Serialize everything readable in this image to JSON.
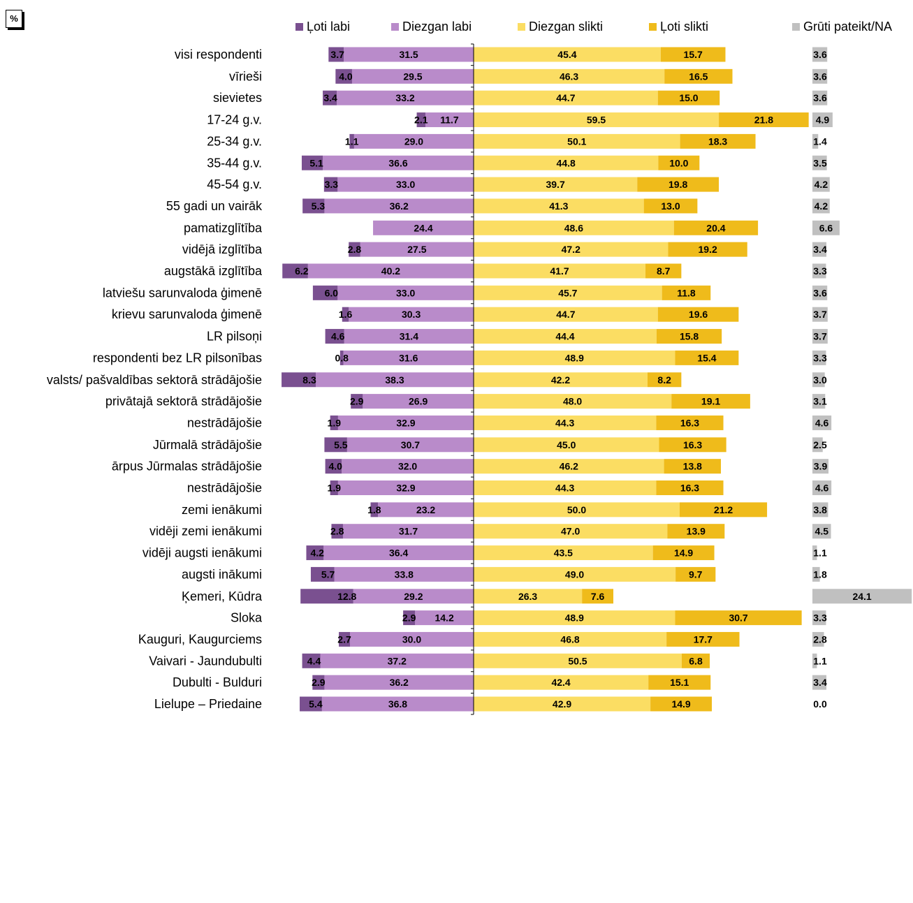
{
  "unit_label": "%",
  "colors": {
    "loti_labi": "#7a5090",
    "diezgan_labi": "#b98bca",
    "diezgan_slikti": "#fbdd63",
    "loti_slikti": "#efbb1b",
    "gruti": "#c0c0c0"
  },
  "legend": [
    {
      "name": "Ļoti labi",
      "color": "#7a5090"
    },
    {
      "name": "Diezgan labi",
      "color": "#b98bca"
    },
    {
      "name": "Diezgan slikti",
      "color": "#fbdd63"
    },
    {
      "name": "Ļoti slikti",
      "color": "#efbb1b"
    },
    {
      "name": "Grūti pateikt/NA",
      "color": "#c0c0c0"
    }
  ],
  "chart_data": {
    "type": "bar",
    "orientation": "horizontal-diverging",
    "legend_position": "top",
    "grid": false,
    "series_names": [
      "Ļoti labi",
      "Diezgan labi",
      "Diezgan slikti",
      "Ļoti slikti",
      "Grūti pateikt/NA"
    ],
    "groups": [
      [
        {
          "label": "visi respondenti",
          "values": [
            "3.7",
            "31.5",
            "45.4",
            "15.7",
            "3.6"
          ]
        }
      ],
      [
        {
          "label": "vīrieši",
          "values": [
            "4.0",
            "29.5",
            "46.3",
            "16.5",
            "3.6"
          ]
        },
        {
          "label": "sievietes",
          "values": [
            "3.4",
            "33.2",
            "44.7",
            "15.0",
            "3.6"
          ]
        }
      ],
      [
        {
          "label": "17-24 g.v.",
          "values": [
            "2.1",
            "11.7",
            "59.5",
            "21.8",
            "4.9"
          ]
        },
        {
          "label": "25-34 g.v.",
          "values": [
            "1.1",
            "29.0",
            "50.1",
            "18.3",
            "1.4"
          ]
        },
        {
          "label": "35-44 g.v.",
          "values": [
            "5.1",
            "36.6",
            "44.8",
            "10.0",
            "3.5"
          ]
        },
        {
          "label": "45-54 g.v.",
          "values": [
            "3.3",
            "33.0",
            "39.7",
            "19.8",
            "4.2"
          ]
        },
        {
          "label": "55 gadi un vairāk",
          "values": [
            "5.3",
            "36.2",
            "41.3",
            "13.0",
            "4.2"
          ]
        }
      ],
      [
        {
          "label": "pamatizglītība",
          "values": [
            null,
            "24.4",
            "48.6",
            "20.4",
            "6.6"
          ]
        },
        {
          "label": "vidējā izglītība",
          "values": [
            "2.8",
            "27.5",
            "47.2",
            "19.2",
            "3.4"
          ]
        },
        {
          "label": "augstākā izglītība",
          "values": [
            "6.2",
            "40.2",
            "41.7",
            "8.7",
            "3.3"
          ]
        }
      ],
      [
        {
          "label": "latviešu sarunvaloda ģimenē",
          "values": [
            "6.0",
            "33.0",
            "45.7",
            "11.8",
            "3.6"
          ]
        },
        {
          "label": "krievu sarunvaloda ģimenē",
          "values": [
            "1.6",
            "30.3",
            "44.7",
            "19.6",
            "3.7"
          ]
        }
      ],
      [
        {
          "label": "LR pilsoņi",
          "values": [
            "4.6",
            "31.4",
            "44.4",
            "15.8",
            "3.7"
          ]
        },
        {
          "label": "respondenti bez LR pilsonības",
          "values": [
            "0.8",
            "31.6",
            "48.9",
            "15.4",
            "3.3"
          ]
        }
      ],
      [
        {
          "label": "valsts/ pašvaldības sektorā strādājošie",
          "values": [
            "8.3",
            "38.3",
            "42.2",
            "8.2",
            "3.0"
          ]
        },
        {
          "label": "privātajā sektorā strādājošie",
          "values": [
            "2.9",
            "26.9",
            "48.0",
            "19.1",
            "3.1"
          ]
        },
        {
          "label": "nestrādājošie",
          "values": [
            "1.9",
            "32.9",
            "44.3",
            "16.3",
            "4.6"
          ]
        }
      ],
      [
        {
          "label": "Jūrmalā strādājošie",
          "values": [
            "5.5",
            "30.7",
            "45.0",
            "16.3",
            "2.5"
          ]
        },
        {
          "label": "ārpus Jūrmalas strādājošie",
          "values": [
            "4.0",
            "32.0",
            "46.2",
            "13.8",
            "3.9"
          ]
        },
        {
          "label": "nestrādājošie",
          "values": [
            "1.9",
            "32.9",
            "44.3",
            "16.3",
            "4.6"
          ]
        }
      ],
      [
        {
          "label": "zemi ienākumi",
          "values": [
            "1.8",
            "23.2",
            "50.0",
            "21.2",
            "3.8"
          ]
        },
        {
          "label": "vidēji zemi ienākumi",
          "values": [
            "2.8",
            "31.7",
            "47.0",
            "13.9",
            "4.5"
          ]
        },
        {
          "label": "vidēji augsti ienākumi",
          "values": [
            "4.2",
            "36.4",
            "43.5",
            "14.9",
            "1.1"
          ]
        },
        {
          "label": "augsti inākumi",
          "values": [
            "5.7",
            "33.8",
            "49.0",
            "9.7",
            "1.8"
          ]
        }
      ],
      [
        {
          "label": "Ķemeri, Kūdra",
          "values": [
            "12.8",
            "29.2",
            "26.3",
            "7.6",
            "24.1"
          ]
        },
        {
          "label": "Sloka",
          "values": [
            "2.9",
            "14.2",
            "48.9",
            "30.7",
            "3.3"
          ]
        },
        {
          "label": "Kauguri, Kaugurciems",
          "values": [
            "2.7",
            "30.0",
            "46.8",
            "17.7",
            "2.8"
          ]
        },
        {
          "label": "Vaivari - Jaundubulti",
          "values": [
            "4.4",
            "37.2",
            "50.5",
            "6.8",
            "1.1"
          ]
        },
        {
          "label": "Dubulti - Bulduri",
          "values": [
            "2.9",
            "36.2",
            "42.4",
            "15.1",
            "3.4"
          ]
        },
        {
          "label": "Lielupe – Priedaine",
          "values": [
            "5.4",
            "36.8",
            "42.9",
            "14.9",
            "0.0"
          ]
        }
      ]
    ]
  }
}
